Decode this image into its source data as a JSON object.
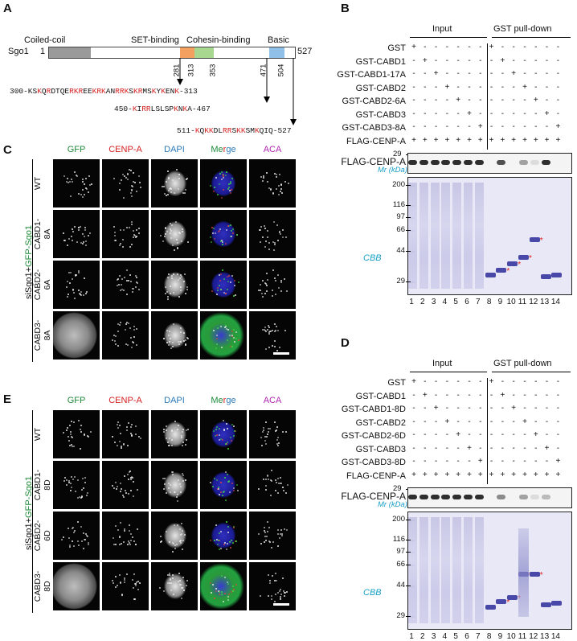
{
  "panels": {
    "A": "A",
    "B": "B",
    "C": "C",
    "D": "D",
    "E": "E"
  },
  "panelA": {
    "protein": "Sgo1",
    "start": "1",
    "end": "527",
    "domains": [
      "Coiled-coil",
      "SET-binding",
      "Cohesin-binding",
      "Basic"
    ],
    "positions": [
      "281",
      "313",
      "353",
      "471",
      "504"
    ],
    "seq1": [
      [
        "300-K",
        "k"
      ],
      [
        "S",
        "k"
      ],
      [
        "K",
        "r"
      ],
      [
        "Q",
        "k"
      ],
      [
        "R",
        "r"
      ],
      [
        "DTQE",
        "k"
      ],
      [
        "RKR",
        "r"
      ],
      [
        "EE",
        "k"
      ],
      [
        "KRK",
        "r"
      ],
      [
        "AN",
        "k"
      ],
      [
        "RRK",
        "r"
      ],
      [
        "S",
        "k"
      ],
      [
        "K",
        "r"
      ],
      [
        "R",
        "r"
      ],
      [
        "MS",
        "k"
      ],
      [
        "K",
        "r"
      ],
      [
        "Y",
        "k"
      ],
      [
        "K",
        "r"
      ],
      [
        "EN",
        "k"
      ],
      [
        "K",
        "r"
      ],
      [
        "-313",
        "k"
      ]
    ],
    "seq2": [
      [
        "450-",
        "k"
      ],
      [
        "K",
        "r"
      ],
      [
        "I",
        "k"
      ],
      [
        "RR",
        "r"
      ],
      [
        "LSLSP",
        "k"
      ],
      [
        "K",
        "r"
      ],
      [
        "N",
        "k"
      ],
      [
        "K",
        "r"
      ],
      [
        "A-467",
        "k"
      ]
    ],
    "seq3": [
      [
        "511-",
        "k"
      ],
      [
        "K",
        "r"
      ],
      [
        "Q",
        "k"
      ],
      [
        "KK",
        "r"
      ],
      [
        "DL",
        "k"
      ],
      [
        "RR",
        "r"
      ],
      [
        "S",
        "k"
      ],
      [
        "KK",
        "r"
      ],
      [
        "SM",
        "k"
      ],
      [
        "K",
        "r"
      ],
      [
        "QIQ-527",
        "k"
      ]
    ]
  },
  "panelB": {
    "input_label": "Input",
    "pulldown_label": "GST pull-down",
    "rows": [
      "GST",
      "GST-CABD1",
      "GST-CABD1-17A",
      "GST-CABD2",
      "GST-CABD2-6A",
      "GST-CABD3",
      "GST-CABD3-8A",
      "FLAG-CENP-A"
    ],
    "wb_label": "FLAG-CENP-A",
    "mr_label": "Mr (kDa)",
    "markers": [
      "29",
      "200",
      "116",
      "97",
      "66",
      "44",
      "29"
    ],
    "cbb": "CBB",
    "lanes": [
      "1",
      "2",
      "3",
      "4",
      "5",
      "6",
      "7",
      "8",
      "9",
      "10",
      "11",
      "12",
      "13",
      "14"
    ]
  },
  "panelD": {
    "input_label": "Input",
    "pulldown_label": "GST pull-down",
    "rows": [
      "GST",
      "GST-CABD1",
      "GST-CABD1-8D",
      "GST-CABD2",
      "GST-CABD2-6D",
      "GST-CABD3",
      "GST-CABD3-8D",
      "FLAG-CENP-A"
    ],
    "wb_label": "FLAG-CENP-A",
    "mr_label": "Mr (kDa)",
    "markers": [
      "29",
      "200",
      "116",
      "97",
      "66",
      "44",
      "29"
    ],
    "cbb": "CBB",
    "lanes": [
      "1",
      "2",
      "3",
      "4",
      "5",
      "6",
      "7",
      "8",
      "9",
      "10",
      "11",
      "12",
      "13",
      "14"
    ]
  },
  "panelC": {
    "columns": [
      "GFP",
      "CENP-A",
      "DAPI",
      "Merge",
      "ACA"
    ],
    "side_label_a": "siSgo1+",
    "side_label_b": "GFP-Sgo1",
    "rows": [
      "WT",
      "CABD1-\n8A",
      "CABD2-\n6A",
      "CABD3-\n8A"
    ]
  },
  "panelE": {
    "columns": [
      "GFP",
      "CENP-A",
      "DAPI",
      "Merge",
      "ACA"
    ],
    "side_label_a": "siSgo1+",
    "side_label_b": "GFP-Sgo1",
    "rows": [
      "WT",
      "CABD1-\n8D",
      "CABD2-\n6D",
      "CABD3-\n8D"
    ]
  },
  "colors": {
    "gfp": "#1e8a3a",
    "cenpa": "#d42020",
    "dapi": "#2a7ab8",
    "aca": "#b026b0",
    "coiled": "#9a9a9a",
    "set": "#f4a060",
    "cohesin": "#a8d890",
    "basic": "#90c0e8",
    "cyan_label": "#1aa0c8",
    "gel_bg": "#e6e6f4",
    "band": "#5a5ab8",
    "red_star": "#e02020"
  }
}
